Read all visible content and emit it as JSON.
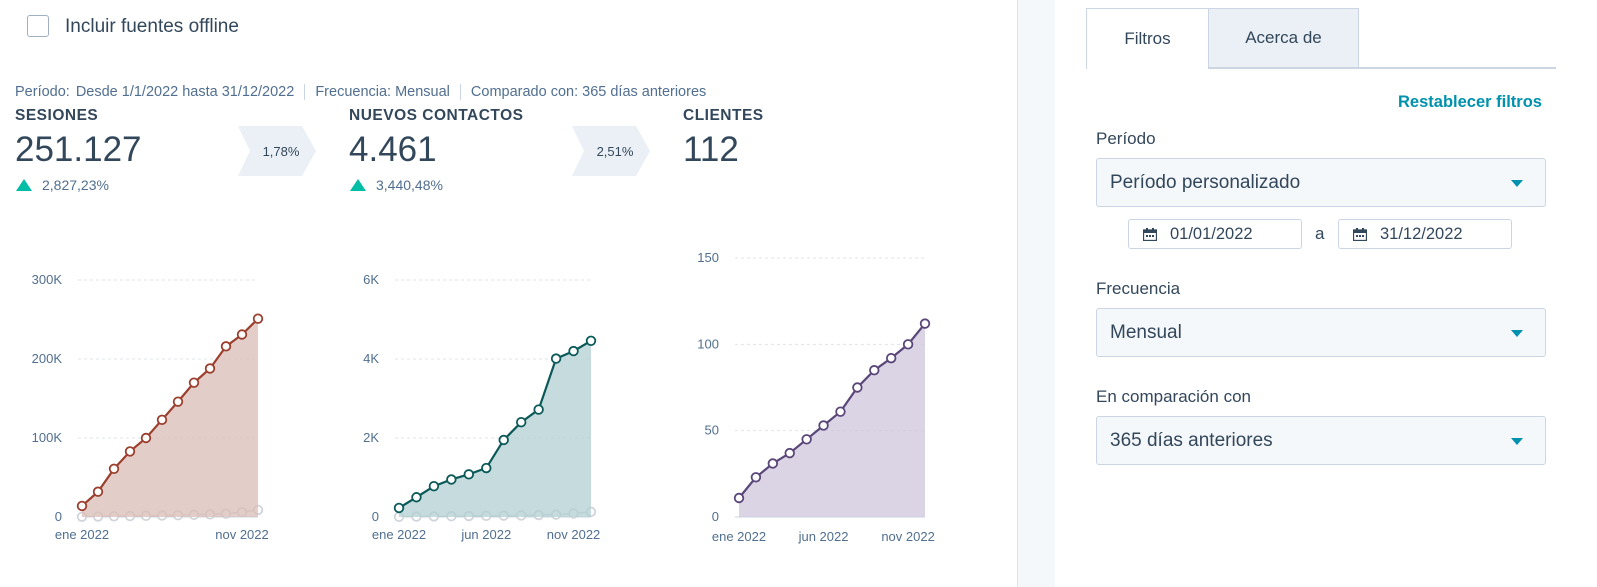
{
  "checkbox": {
    "label": "Incluir fuentes offline",
    "checked": false
  },
  "meta": {
    "period_label": "Período:",
    "period_value": "Desde 1/1/2022 hasta 31/12/2022",
    "frequency": "Frecuencia: Mensual",
    "compared": "Comparado con: 365 días anteriores"
  },
  "kpis": [
    {
      "title": "SESIONES",
      "value": "251.127",
      "change": "2,827,23%"
    },
    {
      "title": "NUEVOS CONTACTOS",
      "value": "4.461",
      "change": "3,440,48%"
    },
    {
      "title": "CLIENTES",
      "value": "112"
    }
  ],
  "conversions": [
    "1,78%",
    "2,51%"
  ],
  "chart_data": [
    {
      "type": "area",
      "series": [
        {
          "values": [
            14000,
            32000,
            61000,
            83000,
            100000,
            123000,
            146000,
            170000,
            188000,
            216000,
            231000,
            251000
          ],
          "color": "#9b3f2e",
          "fill": "#d9bcb5"
        },
        {
          "values": [
            300,
            600,
            900,
            1200,
            1500,
            1900,
            2300,
            2800,
            3400,
            4200,
            6100,
            9000
          ],
          "color": "#d0d5dc"
        }
      ],
      "x_ticks": [
        {
          "i": 0,
          "label": "ene 2022"
        },
        {
          "i": 10,
          "label": "nov 2022"
        }
      ],
      "y_ticks": [
        0,
        100000,
        200000,
        300000
      ],
      "y_tick_labels": [
        "0",
        "100K",
        "200K",
        "300K"
      ],
      "ylim": [
        0,
        300000
      ],
      "grid": true
    },
    {
      "type": "area",
      "series": [
        {
          "values": [
            230,
            500,
            780,
            950,
            1080,
            1240,
            1950,
            2400,
            2720,
            4010,
            4200,
            4461
          ],
          "color": "#0b5a59",
          "fill": "#b3cfd1"
        },
        {
          "values": [
            5,
            10,
            15,
            20,
            25,
            30,
            35,
            40,
            50,
            60,
            90,
            130
          ],
          "color": "#d0d5dc"
        }
      ],
      "x_ticks": [
        {
          "i": 0,
          "label": "ene 2022"
        },
        {
          "i": 5,
          "label": "jun 2022"
        },
        {
          "i": 10,
          "label": "nov 2022"
        }
      ],
      "y_ticks": [
        0,
        2000,
        4000,
        6000
      ],
      "y_tick_labels": [
        "0",
        "2K",
        "4K",
        "6K"
      ],
      "ylim": [
        0,
        6000
      ],
      "grid": true
    },
    {
      "type": "area",
      "series": [
        {
          "values": [
            11,
            23,
            31,
            37,
            45,
            53,
            61,
            75,
            85,
            92,
            100,
            112
          ],
          "color": "#5a4678",
          "fill": "#cdc6dc"
        }
      ],
      "x_ticks": [
        {
          "i": 0,
          "label": "ene 2022"
        },
        {
          "i": 5,
          "label": "jun 2022"
        },
        {
          "i": 10,
          "label": "nov 2022"
        }
      ],
      "y_ticks": [
        0,
        50,
        100,
        150
      ],
      "y_tick_labels": [
        "0",
        "50",
        "100",
        "150"
      ],
      "ylim": [
        0,
        150
      ],
      "grid": true
    }
  ],
  "panel": {
    "tabs": [
      "Filtros",
      "Acerca de"
    ],
    "reset": "Restablecer filtros",
    "period_label": "Período",
    "period_value": "Período personalizado",
    "date_from": "01/01/2022",
    "date_sep": "a",
    "date_to": "31/12/2022",
    "frequency_label": "Frecuencia",
    "frequency_value": "Mensual",
    "compare_label": "En comparación con",
    "compare_value": "365 días anteriores"
  }
}
